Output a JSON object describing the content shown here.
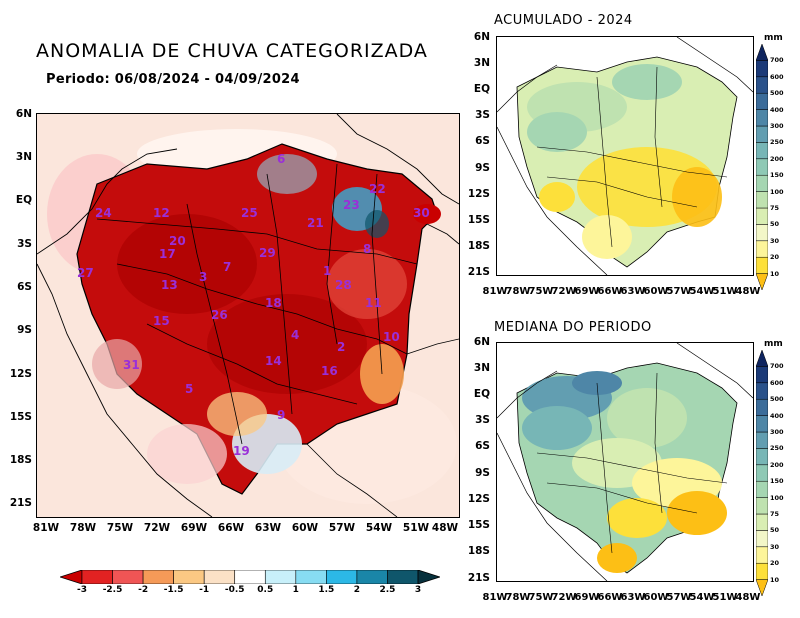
{
  "main_map": {
    "title": "ANOMALIA DE CHUVA CATEGORIZADA",
    "period": "Periodo: 06/08/2024 - 04/09/2024",
    "y_ticks": [
      "6N",
      "3N",
      "EQ",
      "3S",
      "6S",
      "9S",
      "12S",
      "15S",
      "18S",
      "21S"
    ],
    "x_ticks": [
      "81W",
      "78W",
      "75W",
      "72W",
      "69W",
      "66W",
      "63W",
      "60W",
      "57W",
      "54W",
      "51W",
      "48W"
    ],
    "basin_labels": [
      "6",
      "22",
      "23",
      "24",
      "12",
      "25",
      "21",
      "8",
      "20",
      "29",
      "17",
      "7",
      "1",
      "13",
      "3",
      "28",
      "11",
      "18",
      "27",
      "26",
      "4",
      "10",
      "2",
      "14",
      "15",
      "16",
      "31",
      "5",
      "9",
      "19",
      "30"
    ],
    "colorbar": {
      "labels": [
        "-3",
        "-2.5",
        "-2",
        "-1.5",
        "-1",
        "-0.5",
        "0.5",
        "1",
        "1.5",
        "2",
        "2.5",
        "3"
      ],
      "colors": [
        "#c90000",
        "#e22222",
        "#f05555",
        "#f59a58",
        "#fbc883",
        "#fbe1c6",
        "#ffffff",
        "#c8f0fa",
        "#87dcf2",
        "#2cb8e6",
        "#1a86a8",
        "#0f566b",
        "#07303c"
      ]
    }
  },
  "panel_accum": {
    "title": "ACUMULADO - 2024",
    "unit": "mm",
    "y_ticks": [
      "6N",
      "3N",
      "EQ",
      "3S",
      "6S",
      "9S",
      "12S",
      "15S",
      "18S",
      "21S"
    ],
    "x_ticks": [
      "81W",
      "78W",
      "75W",
      "72W",
      "69W",
      "66W",
      "63W",
      "60W",
      "57W",
      "54W",
      "51W",
      "48W"
    ]
  },
  "panel_median": {
    "title": "MEDIANA DO PERIODO",
    "unit": "mm",
    "y_ticks": [
      "6N",
      "3N",
      "EQ",
      "3S",
      "6S",
      "9S",
      "12S",
      "15S",
      "18S",
      "21S"
    ],
    "x_ticks": [
      "81W",
      "78W",
      "75W",
      "72W",
      "69W",
      "66W",
      "63W",
      "60W",
      "57W",
      "54W",
      "51W",
      "48W"
    ]
  },
  "precip_scale": {
    "labels": [
      "10",
      "20",
      "30",
      "50",
      "75",
      "100",
      "150",
      "200",
      "250",
      "300",
      "400",
      "500",
      "600",
      "700"
    ],
    "colors": [
      "#fdbf15",
      "#fde03a",
      "#fdf59a",
      "#f3f7c8",
      "#d9eeb3",
      "#bfe2b0",
      "#a5d6b2",
      "#8ec9b5",
      "#77b6b6",
      "#629eb1",
      "#4e86a7",
      "#3b6c9a",
      "#2a528b",
      "#1b3a78",
      "#0f255f"
    ]
  }
}
